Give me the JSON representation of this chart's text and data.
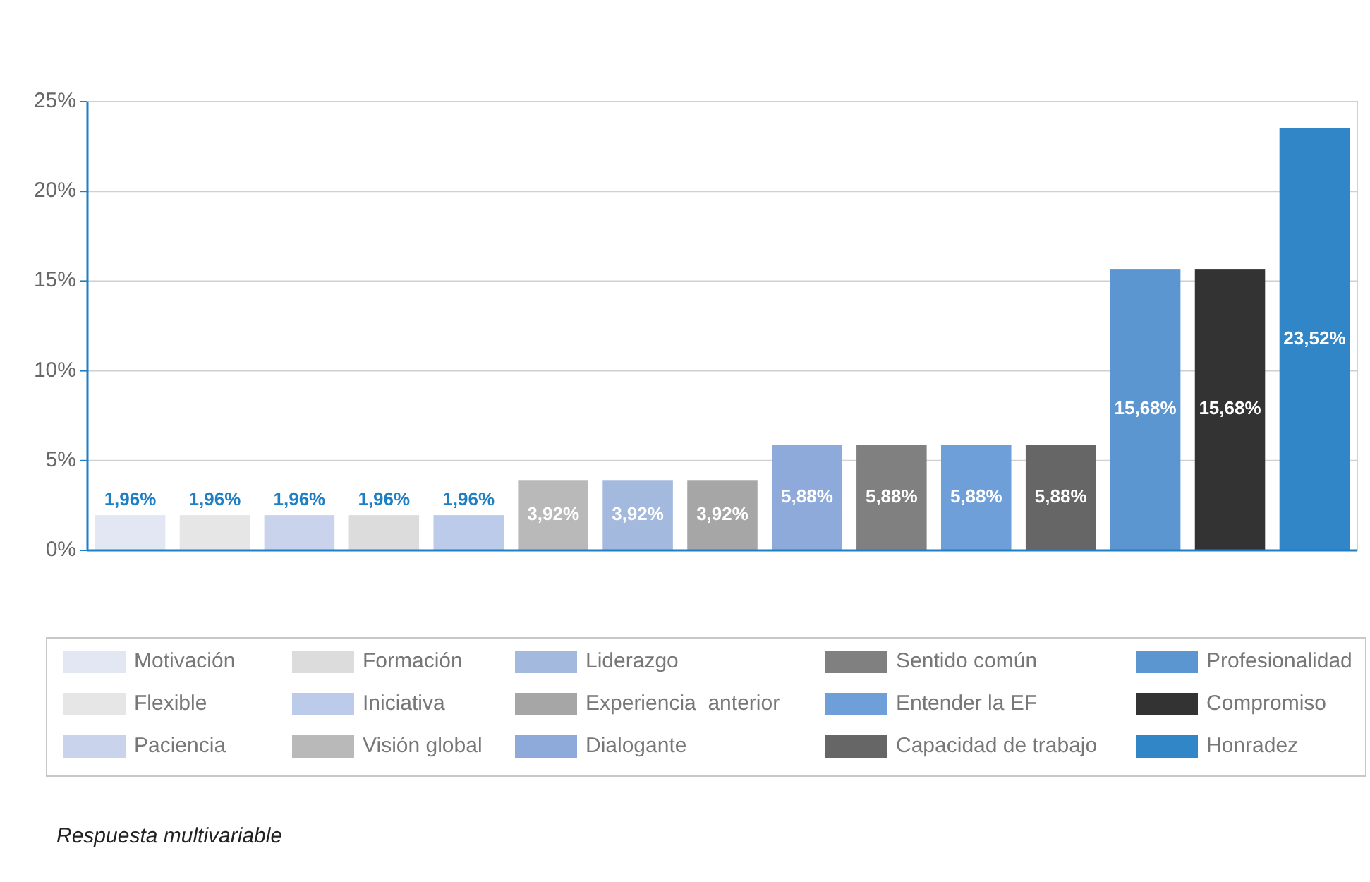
{
  "chart_data": {
    "type": "bar",
    "categories": [
      null,
      null,
      null,
      null,
      null,
      null,
      null,
      null,
      null,
      null,
      null,
      null,
      null,
      null,
      null
    ],
    "ylim": [
      0,
      25
    ],
    "yticks": [
      {
        "value": 0,
        "label": "0%"
      },
      {
        "value": 5,
        "label": "5%"
      },
      {
        "value": 10,
        "label": "10%"
      },
      {
        "value": 15,
        "label": "15%"
      },
      {
        "value": 20,
        "label": "20%"
      },
      {
        "value": 25,
        "label": "25%"
      }
    ],
    "grid": "y",
    "legend": "bottom",
    "annotations": [
      "Respuesta multivariable"
    ],
    "series": [
      {
        "name": "Motivación",
        "color": "#e3e6f3",
        "values": [
          1.96,
          null,
          null,
          null,
          null,
          null,
          null,
          null,
          null,
          null,
          null,
          null,
          null,
          null,
          null
        ],
        "value_labels": [
          "1,96%",
          null,
          null,
          null,
          null,
          null,
          null,
          null,
          null,
          null,
          null,
          null,
          null,
          null,
          null
        ]
      },
      {
        "name": "Flexible",
        "color": "#e6e6e6",
        "values": [
          null,
          1.96,
          null,
          null,
          null,
          null,
          null,
          null,
          null,
          null,
          null,
          null,
          null,
          null,
          null
        ],
        "value_labels": [
          null,
          "1,96%",
          null,
          null,
          null,
          null,
          null,
          null,
          null,
          null,
          null,
          null,
          null,
          null,
          null
        ]
      },
      {
        "name": "Paciencia",
        "color": "#c9d3ec",
        "values": [
          null,
          null,
          1.96,
          null,
          null,
          null,
          null,
          null,
          null,
          null,
          null,
          null,
          null,
          null,
          null
        ],
        "value_labels": [
          null,
          null,
          "1,96%",
          null,
          null,
          null,
          null,
          null,
          null,
          null,
          null,
          null,
          null,
          null,
          null
        ]
      },
      {
        "name": "Formación",
        "color": "#dcdcdc",
        "values": [
          null,
          null,
          null,
          1.96,
          null,
          null,
          null,
          null,
          null,
          null,
          null,
          null,
          null,
          null,
          null
        ],
        "value_labels": [
          null,
          null,
          null,
          "1,96%",
          null,
          null,
          null,
          null,
          null,
          null,
          null,
          null,
          null,
          null,
          null
        ]
      },
      {
        "name": "Iniciativa",
        "color": "#bccbe9",
        "values": [
          null,
          null,
          null,
          null,
          1.96,
          null,
          null,
          null,
          null,
          null,
          null,
          null,
          null,
          null,
          null
        ],
        "value_labels": [
          null,
          null,
          null,
          null,
          "1,96%",
          null,
          null,
          null,
          null,
          null,
          null,
          null,
          null,
          null,
          null
        ]
      },
      {
        "name": "Visión global",
        "color": "#b9b9b9",
        "values": [
          null,
          null,
          null,
          null,
          null,
          3.92,
          null,
          null,
          null,
          null,
          null,
          null,
          null,
          null,
          null
        ],
        "value_labels": [
          null,
          null,
          null,
          null,
          null,
          "3,92%",
          null,
          null,
          null,
          null,
          null,
          null,
          null,
          null,
          null
        ]
      },
      {
        "name": "Liderazgo",
        "color": "#a3b9de",
        "values": [
          null,
          null,
          null,
          null,
          null,
          null,
          3.92,
          null,
          null,
          null,
          null,
          null,
          null,
          null,
          null
        ],
        "value_labels": [
          null,
          null,
          null,
          null,
          null,
          null,
          "3,92%",
          null,
          null,
          null,
          null,
          null,
          null,
          null,
          null
        ]
      },
      {
        "name": "Experiencia  anterior",
        "color": "#a6a6a6",
        "values": [
          null,
          null,
          null,
          null,
          null,
          null,
          null,
          3.92,
          null,
          null,
          null,
          null,
          null,
          null,
          null
        ],
        "value_labels": [
          null,
          null,
          null,
          null,
          null,
          null,
          null,
          "3,92%",
          null,
          null,
          null,
          null,
          null,
          null,
          null
        ]
      },
      {
        "name": "Dialogante",
        "color": "#8eaadb",
        "values": [
          null,
          null,
          null,
          null,
          null,
          null,
          null,
          null,
          5.88,
          null,
          null,
          null,
          null,
          null,
          null
        ],
        "value_labels": [
          null,
          null,
          null,
          null,
          null,
          null,
          null,
          null,
          "5,88%",
          null,
          null,
          null,
          null,
          null,
          null
        ]
      },
      {
        "name": "Sentido común",
        "color": "#808080",
        "values": [
          null,
          null,
          null,
          null,
          null,
          null,
          null,
          null,
          null,
          5.88,
          null,
          null,
          null,
          null,
          null
        ],
        "value_labels": [
          null,
          null,
          null,
          null,
          null,
          null,
          null,
          null,
          null,
          "5,88%",
          null,
          null,
          null,
          null,
          null
        ]
      },
      {
        "name": "Entender la EF",
        "color": "#6f9fd8",
        "values": [
          null,
          null,
          null,
          null,
          null,
          null,
          null,
          null,
          null,
          null,
          5.88,
          null,
          null,
          null,
          null
        ],
        "value_labels": [
          null,
          null,
          null,
          null,
          null,
          null,
          null,
          null,
          null,
          null,
          "5,88%",
          null,
          null,
          null,
          null
        ]
      },
      {
        "name": "Capacidad de trabajo",
        "color": "#666666",
        "values": [
          null,
          null,
          null,
          null,
          null,
          null,
          null,
          null,
          null,
          null,
          null,
          5.88,
          null,
          null,
          null
        ],
        "value_labels": [
          null,
          null,
          null,
          null,
          null,
          null,
          null,
          null,
          null,
          null,
          null,
          "5,88%",
          null,
          null,
          null
        ]
      },
      {
        "name": "Profesionalidad",
        "color": "#5b96d0",
        "values": [
          null,
          null,
          null,
          null,
          null,
          null,
          null,
          null,
          null,
          null,
          null,
          null,
          15.68,
          null,
          null
        ],
        "value_labels": [
          null,
          null,
          null,
          null,
          null,
          null,
          null,
          null,
          null,
          null,
          null,
          null,
          "15,68%",
          null,
          null
        ]
      },
      {
        "name": "Compromiso",
        "color": "#333333",
        "values": [
          null,
          null,
          null,
          null,
          null,
          null,
          null,
          null,
          null,
          null,
          null,
          null,
          null,
          15.68,
          null
        ],
        "value_labels": [
          null,
          null,
          null,
          null,
          null,
          null,
          null,
          null,
          null,
          null,
          null,
          null,
          null,
          "15,68%",
          null
        ]
      },
      {
        "name": "Honradez",
        "color": "#3186c8",
        "values": [
          null,
          null,
          null,
          null,
          null,
          null,
          null,
          null,
          null,
          null,
          null,
          null,
          null,
          null,
          23.52
        ],
        "value_labels": [
          null,
          null,
          null,
          null,
          null,
          null,
          null,
          null,
          null,
          null,
          null,
          null,
          null,
          null,
          "23,52%"
        ]
      }
    ]
  }
}
